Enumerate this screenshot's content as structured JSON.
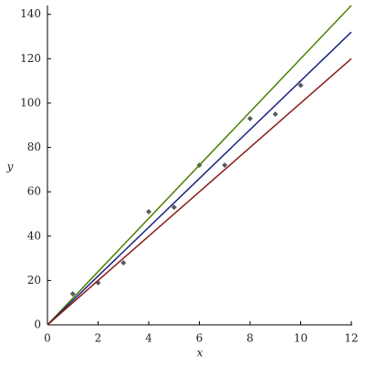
{
  "chart_data": {
    "type": "scatter",
    "x_label": "x",
    "y_label": "y",
    "xlim": [
      0,
      12
    ],
    "ylim": [
      0,
      144
    ],
    "xticks": [
      0,
      2,
      4,
      6,
      8,
      10,
      12
    ],
    "yticks": [
      0,
      20,
      40,
      60,
      80,
      100,
      120,
      140
    ],
    "grid": false,
    "series": [
      {
        "style": "markers",
        "color": "#5a5a5a",
        "x": [
          1,
          2,
          3,
          4,
          5,
          6,
          7,
          8,
          9,
          10
        ],
        "values": [
          14,
          19,
          28,
          51,
          53,
          72,
          72,
          93,
          95,
          108
        ]
      },
      {
        "style": "line",
        "color": "#4b8000",
        "x": [
          0,
          12
        ],
        "values": [
          0,
          144
        ]
      },
      {
        "style": "line",
        "color": "#1a237e",
        "x": [
          0,
          12
        ],
        "values": [
          0,
          132
        ]
      },
      {
        "style": "line",
        "color": "#8b1a1a",
        "x": [
          0,
          12
        ],
        "values": [
          0,
          120
        ]
      }
    ]
  }
}
